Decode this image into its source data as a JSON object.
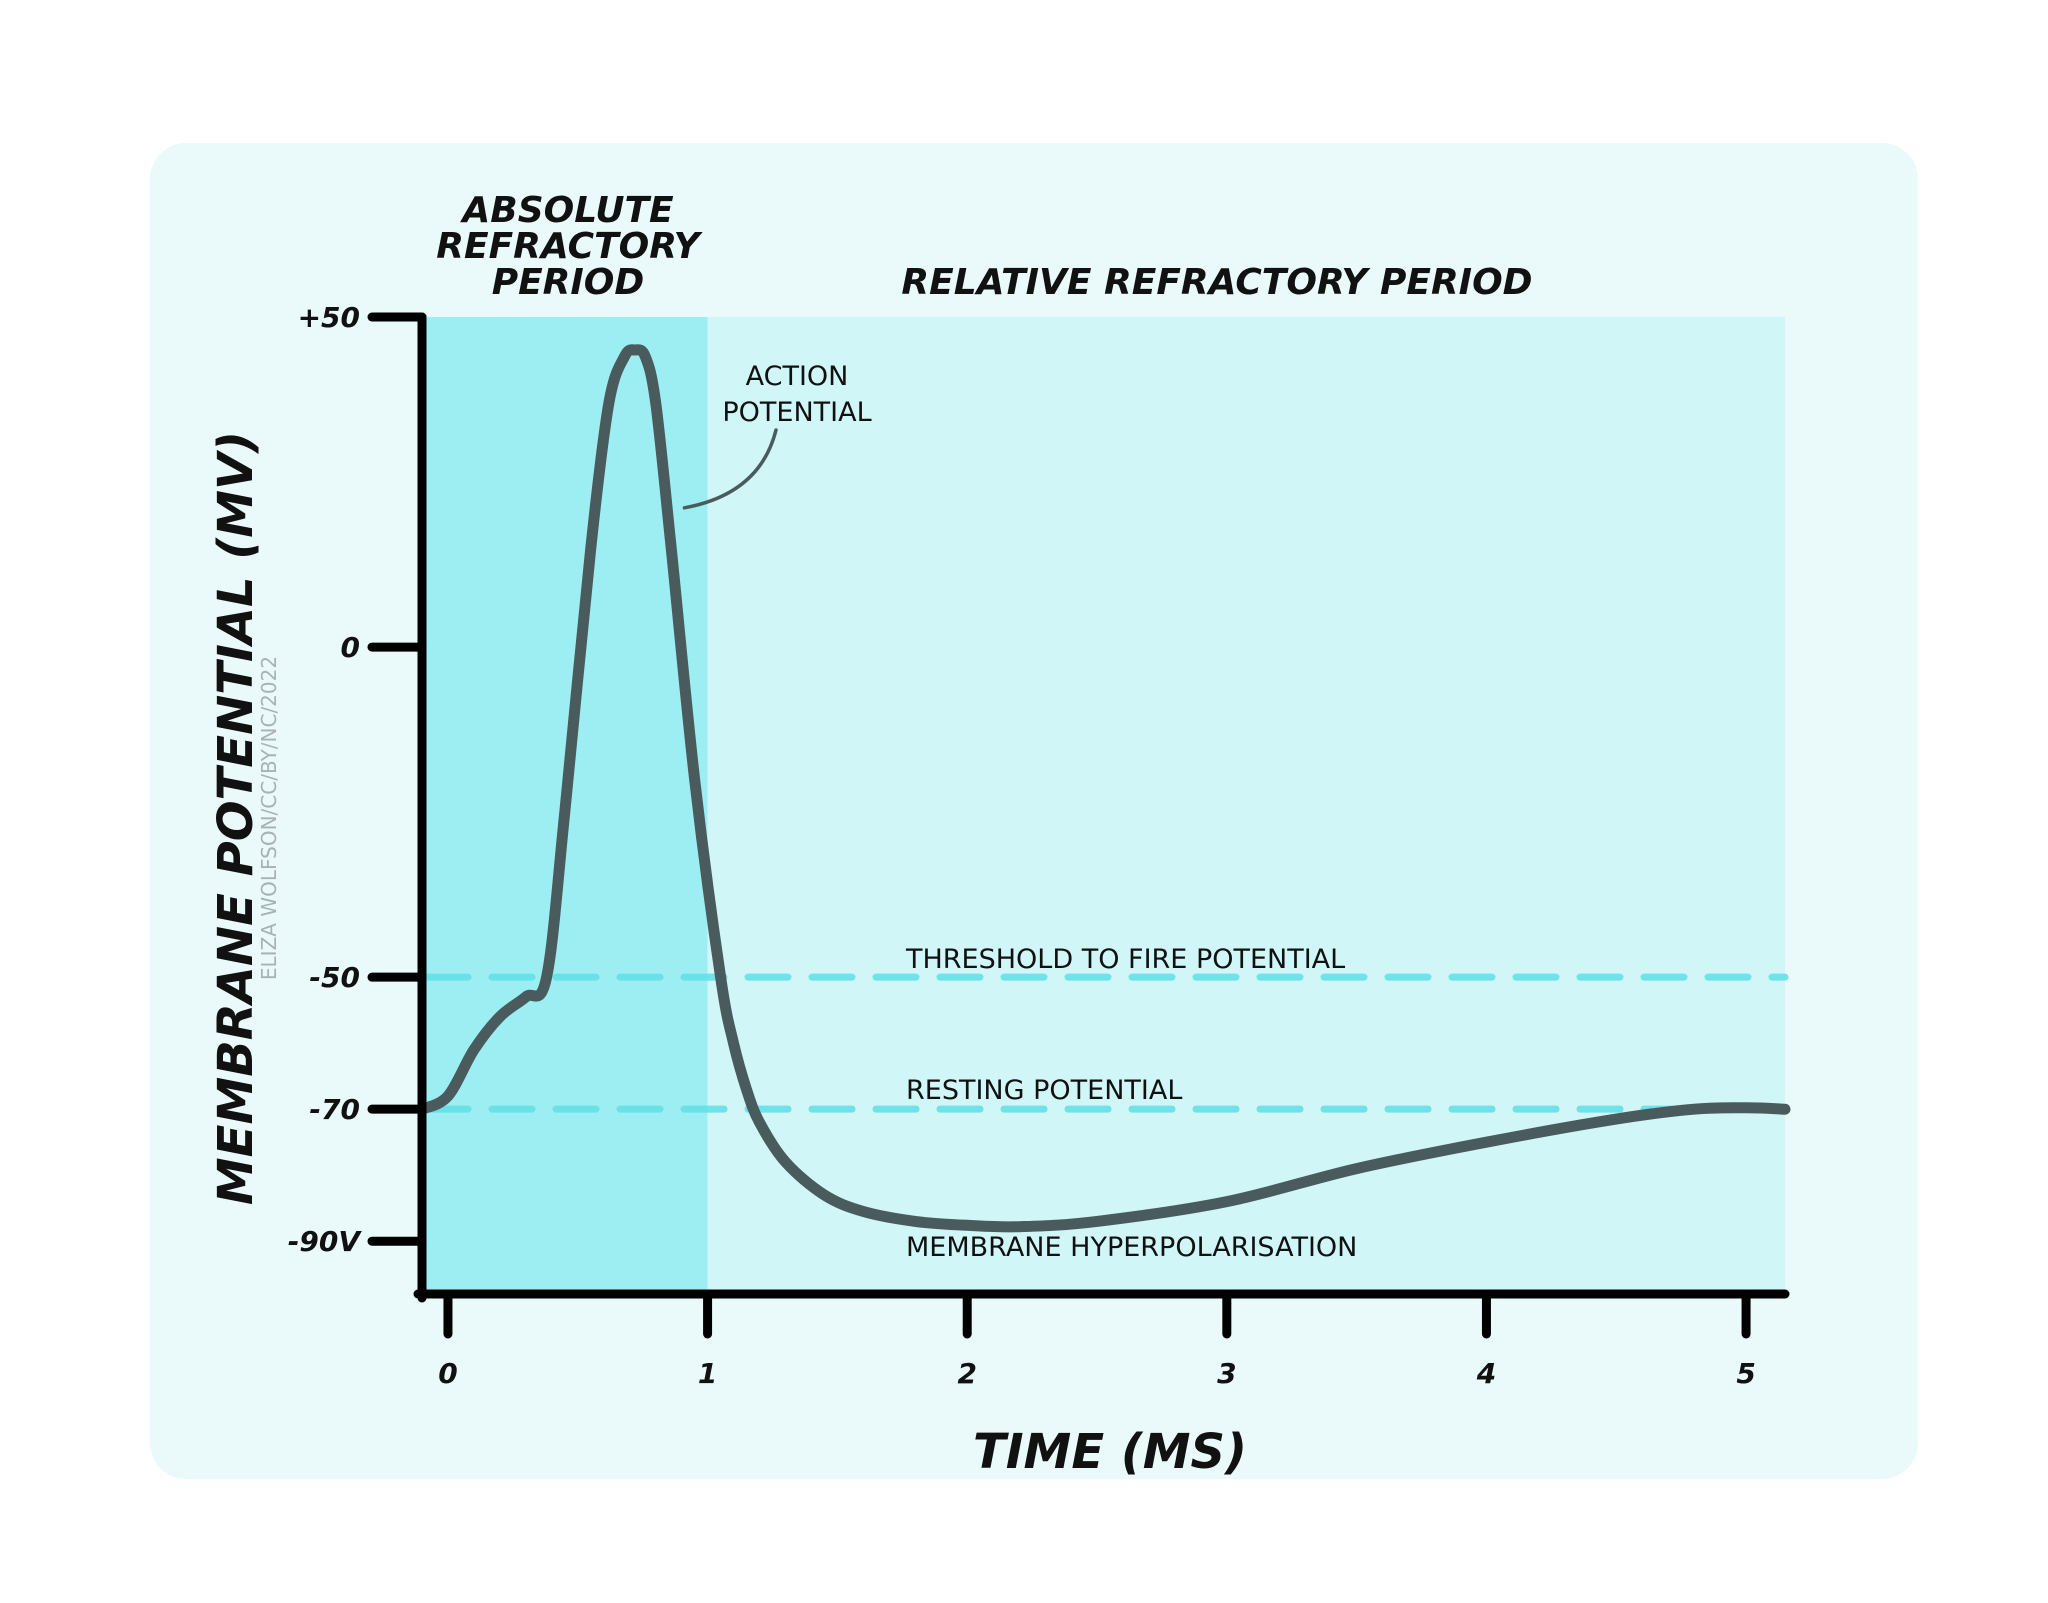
{
  "chart_data": {
    "type": "line",
    "xlabel": "TIME (MS)",
    "ylabel": "MEMBRANE POTENTIAL (MV)",
    "xlim": [
      -0.1,
      5.15
    ],
    "ylim": [
      -98,
      50
    ],
    "x_ticks": [
      {
        "value": 0,
        "label": "0"
      },
      {
        "value": 1,
        "label": "1"
      },
      {
        "value": 2,
        "label": "2"
      },
      {
        "value": 3,
        "label": "3"
      },
      {
        "value": 4,
        "label": "4"
      },
      {
        "value": 5,
        "label": "5"
      }
    ],
    "y_ticks": [
      {
        "value": 50,
        "label": "+50"
      },
      {
        "value": 0,
        "label": "0"
      },
      {
        "value": -50,
        "label": "-50"
      },
      {
        "value": -70,
        "label": "-70"
      },
      {
        "value": -90,
        "label": "-90V"
      }
    ],
    "series": [
      {
        "color": "#4a5b5d",
        "x": [
          -0.1,
          0.0,
          0.1,
          0.2,
          0.3,
          0.38,
          0.45,
          0.55,
          0.62,
          0.68,
          0.72,
          0.76,
          0.8,
          0.86,
          0.95,
          1.05,
          1.1,
          1.15,
          1.2,
          1.3,
          1.45,
          1.6,
          1.8,
          2.0,
          2.2,
          2.5,
          3.0,
          3.5,
          4.0,
          4.5,
          4.8,
          5.0,
          5.15
        ],
        "y": [
          -70,
          -68,
          -61,
          -56,
          -53,
          -50,
          -25,
          15,
          37,
          44,
          45,
          44,
          37,
          15,
          -20,
          -50,
          -60,
          -67,
          -72,
          -78,
          -83,
          -85.5,
          -87,
          -87.6,
          -87.8,
          -87,
          -84,
          -79,
          -75,
          -71.5,
          -70,
          -69.8,
          -70
        ]
      }
    ],
    "regions": [
      {
        "label_lines": [
          "ABSOLUTE",
          "REFRACTORY",
          "PERIOD"
        ],
        "x_range": [
          -0.1,
          1.0
        ],
        "color": "#9deef2"
      },
      {
        "label_lines": [
          "RELATIVE REFRACTORY PERIOD"
        ],
        "x_range": [
          1.0,
          5.15
        ],
        "color": "#d0f6f8"
      }
    ],
    "reference_lines": [
      {
        "label": "THRESHOLD TO FIRE POTENTIAL",
        "y": -50,
        "color": "#5ee0e8",
        "style": "dashed"
      },
      {
        "label": "RESTING POTENTIAL",
        "y": -70,
        "color": "#5ee0e8",
        "style": "dashed"
      }
    ],
    "annotations": [
      {
        "text_lines": [
          "ACTION",
          "POTENTIAL"
        ],
        "points_to": {
          "x": 0.88,
          "y": 22
        }
      },
      {
        "text": "MEMBRANE HYPERPOLARISATION",
        "near": {
          "x": 1.8,
          "y": -90
        }
      }
    ],
    "credit": "ELIZA WOLFSON/CC/BY/NC/2022",
    "grid": false,
    "legend": "none",
    "colors": {
      "card_background": "#eafafb",
      "page_background": "#ffffff",
      "axis": "#000000",
      "curve": "#4a5b5d"
    }
  }
}
